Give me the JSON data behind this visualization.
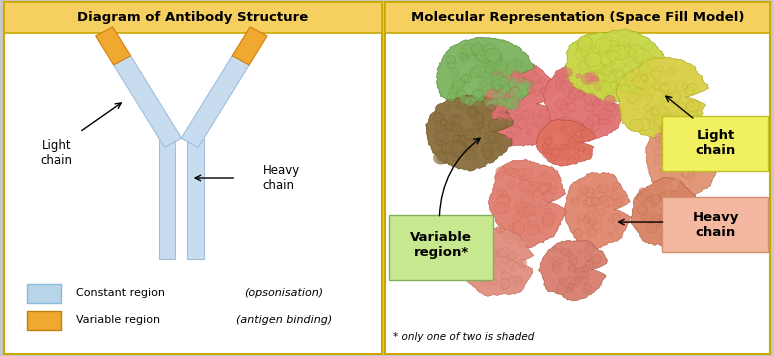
{
  "title_left": "Diagram of Antibody Structure",
  "title_right": "Molecular Representation (Space Fill Model)",
  "title_bg": "#F5D060",
  "title_border": "#C8A800",
  "panel_border": "#C8A800",
  "legend_constant_color": "#B8D4E8",
  "legend_variable_color": "#F0A830",
  "footnote": "* only one of two is shaded",
  "antibody_stem_color": "#C8DCF0",
  "antibody_stem_edge": "#A0BEDD",
  "variable_tip_color": "#F0A830",
  "variable_region_label_bg": "#C8E890",
  "light_chain_label_bg": "#F0F060",
  "heavy_chain_label_bg": "#F4B8A0"
}
